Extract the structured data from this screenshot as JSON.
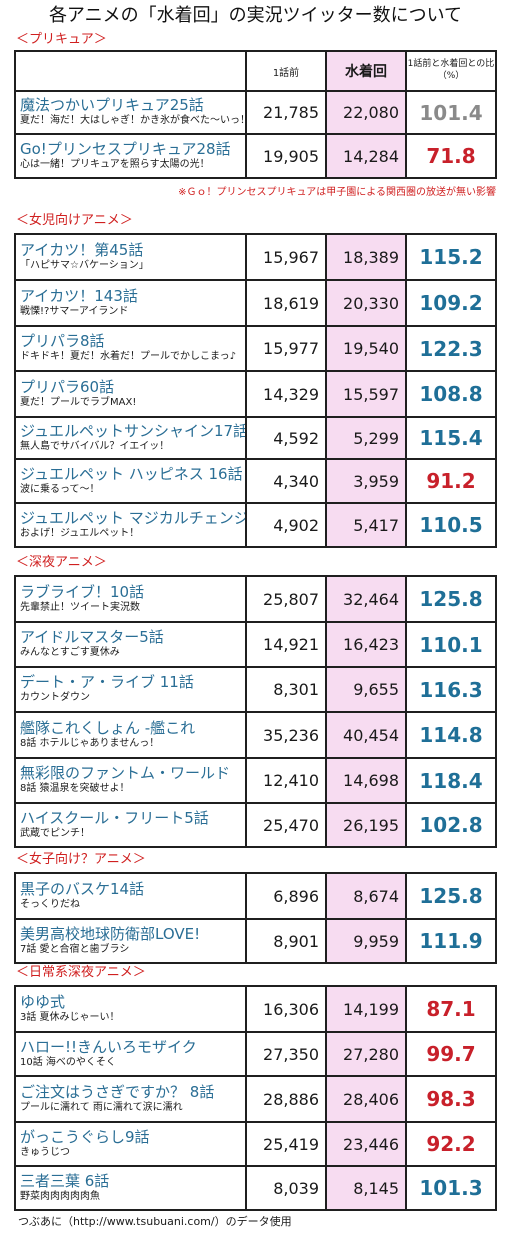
{
  "title": "各アニメの「水着回」の実況ツイッター数について",
  "header": {
    "col_before": "1話前",
    "col_swim": "水着回",
    "col_ratio": "1話前と水着回との比（%）"
  },
  "colors": {
    "up": "#1f6f97",
    "down": "#c8202a",
    "neutral": "#8a8a8a",
    "swim_bg": "#f7dcf1",
    "section": "#d02020",
    "episode": "#2a6e95"
  },
  "sections": [
    {
      "label": "＜プリキュア＞",
      "rows": [
        {
          "episode": "魔法つかいプリキュア25話",
          "subtitle": "夏だ！海だ！大はしゃぎ！かき氷が食べた〜いっ！",
          "before": "21,785",
          "swim": "22,080",
          "ratio": "101.4",
          "color": "neutral"
        },
        {
          "episode": "Go!プリンセスプリキュア28話",
          "subtitle": "心は一緒！プリキュアを照らす太陽の光！",
          "before": "19,905",
          "swim": "14,284",
          "ratio": "71.8",
          "color": "down"
        }
      ]
    },
    {
      "label": "＜女児向けアニメ＞",
      "rows": [
        {
          "episode": "アイカツ！第45話",
          "subtitle": "「ハピサマ☆バケーション」",
          "before": "15,967",
          "swim": "18,389",
          "ratio": "115.2",
          "color": "up"
        },
        {
          "episode": "アイカツ！143話",
          "subtitle": "戦慄!?サマーアイランド",
          "before": "18,619",
          "swim": "20,330",
          "ratio": "109.2",
          "color": "up"
        },
        {
          "episode": "プリパラ8話",
          "subtitle": "ドキドキ！夏だ！水着だ！プールでかしこまっ♪",
          "before": "15,977",
          "swim": "19,540",
          "ratio": "122.3",
          "color": "up"
        },
        {
          "episode": "プリパラ60話",
          "subtitle": "夏だ！プールでラブMAX!",
          "before": "14,329",
          "swim": "15,597",
          "ratio": "108.8",
          "color": "up"
        },
        {
          "episode": "ジュエルペットサンシャイン17話",
          "subtitle": "無人島でサバイバル？イエイッ！",
          "before": "4,592",
          "swim": "5,299",
          "ratio": "115.4",
          "color": "up"
        },
        {
          "episode": "ジュエルペット ハッピネス 16話",
          "subtitle": "波に乗るって〜！",
          "before": "4,340",
          "swim": "3,959",
          "ratio": "91.2",
          "color": "down"
        },
        {
          "episode": "ジュエルペット マジカルチェンジ",
          "subtitle": "およげ！ジュエルペット！",
          "before": "4,902",
          "swim": "5,417",
          "ratio": "110.5",
          "color": "up"
        }
      ]
    },
    {
      "label": "＜深夜アニメ＞",
      "rows": [
        {
          "episode": "ラブライブ！10話",
          "subtitle": "先輩禁止！ツイート実況数",
          "before": "25,807",
          "swim": "32,464",
          "ratio": "125.8",
          "color": "up"
        },
        {
          "episode": "アイドルマスター5話",
          "subtitle": "みんなとすごす夏休み",
          "before": "14,921",
          "swim": "16,423",
          "ratio": "110.1",
          "color": "up"
        },
        {
          "episode": "デート・ア・ライブ 11話",
          "subtitle": "カウントダウン",
          "before": "8,301",
          "swim": "9,655",
          "ratio": "116.3",
          "color": "up"
        },
        {
          "episode": "艦隊これくしょん -艦これ",
          "subtitle": "8話 ホテルじゃありませんっ！",
          "before": "35,236",
          "swim": "40,454",
          "ratio": "114.8",
          "color": "up"
        },
        {
          "episode": "無彩限のファントム・ワールド",
          "subtitle": "8話 猿温泉を突破せよ！",
          "before": "12,410",
          "swim": "14,698",
          "ratio": "118.4",
          "color": "up"
        },
        {
          "episode": "ハイスクール・フリート5話",
          "subtitle": "武蔵でピンチ！",
          "before": "25,470",
          "swim": "26,195",
          "ratio": "102.8",
          "color": "up"
        }
      ]
    },
    {
      "label": "＜女子向け？アニメ＞",
      "rows": [
        {
          "episode": "黒子のバスケ14話",
          "subtitle": "そっくりだね",
          "before": "6,896",
          "swim": "8,674",
          "ratio": "125.8",
          "color": "up"
        },
        {
          "episode": "美男高校地球防衛部LOVE!",
          "subtitle": "7話 愛と合宿と歯ブラシ",
          "before": "8,901",
          "swim": "9,959",
          "ratio": "111.9",
          "color": "up"
        }
      ]
    },
    {
      "label": "＜日常系深夜アニメ＞",
      "rows": [
        {
          "episode": "ゆゆ式",
          "subtitle": "3話 夏休みじゃーい！",
          "before": "16,306",
          "swim": "14,199",
          "ratio": "87.1",
          "color": "down"
        },
        {
          "episode": "ハロー!!きんいろモザイク",
          "subtitle": "10話 海べのやくそく",
          "before": "27,350",
          "swim": "27,280",
          "ratio": "99.7",
          "color": "down"
        },
        {
          "episode": "ご注文はうさぎですか？ 8話",
          "subtitle": "プールに濡れて 雨に濡れて涙に濡れ",
          "before": "28,886",
          "swim": "28,406",
          "ratio": "98.3",
          "color": "down"
        },
        {
          "episode": "がっこうぐらし9話",
          "subtitle": "きゅうじつ",
          "before": "25,419",
          "swim": "23,446",
          "ratio": "92.2",
          "color": "down"
        },
        {
          "episode": "三者三葉 6話",
          "subtitle": "野菜肉肉肉肉肉魚",
          "before": "8,039",
          "swim": "8,145",
          "ratio": "101.3",
          "color": "up"
        }
      ]
    }
  ],
  "note": "※Ｇｏ！プリンセスプリキュアは甲子園による関西圏の放送が無い影響",
  "footer": "つぶあに（http://www.tsubuani.com/）のデータ使用"
}
